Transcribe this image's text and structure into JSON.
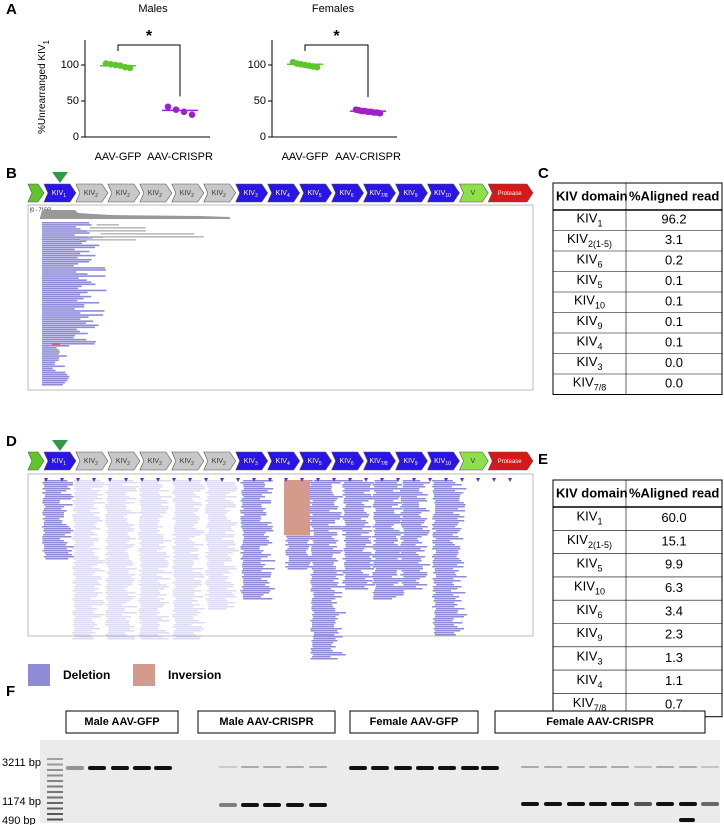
{
  "panel_labels": [
    "A",
    "B",
    "C",
    "D",
    "E",
    "F"
  ],
  "chart_data": [
    {
      "type": "dot",
      "title": "Males",
      "y_label": "%Unrearranged KIV",
      "y_label_sub": "1",
      "categories": [
        "AAV-GFP",
        "AAV-CRISPR"
      ],
      "colors": [
        "#5ec62b",
        "#a020c8"
      ],
      "values": [
        [
          102,
          101,
          100,
          99,
          97,
          96
        ],
        [
          42,
          38,
          35,
          31
        ]
      ],
      "means": [
        99,
        37
      ],
      "ylim": [
        0,
        125
      ],
      "yticks": [
        0,
        50,
        100
      ],
      "significance": "*"
    },
    {
      "type": "dot",
      "title": "Females",
      "categories": [
        "AAV-GFP",
        "AAV-CRISPR"
      ],
      "colors": [
        "#5ec62b",
        "#a020c8"
      ],
      "values": [
        [
          104,
          102,
          101,
          100,
          99,
          98,
          97
        ],
        [
          38,
          37,
          36,
          36,
          35,
          35,
          34,
          34,
          33
        ]
      ],
      "means": [
        101,
        36
      ],
      "ylim": [
        0,
        125
      ],
      "yticks": [
        0,
        50,
        100
      ],
      "significance": "*"
    }
  ],
  "gene_map": [
    {
      "label": null,
      "sub": null,
      "color": "#5ec62b"
    },
    {
      "label": "KIV",
      "sub": "1",
      "color": "#2a14e8"
    },
    {
      "label": "KIV",
      "sub": "2",
      "color": "#c8c8c8"
    },
    {
      "label": "KIV",
      "sub": "2",
      "color": "#c8c8c8"
    },
    {
      "label": "KIV",
      "sub": "2",
      "color": "#c8c8c8"
    },
    {
      "label": "KIV",
      "sub": "2",
      "color": "#c8c8c8"
    },
    {
      "label": "KIV",
      "sub": "2",
      "color": "#c8c8c8"
    },
    {
      "label": "KIV",
      "sub": "3",
      "color": "#2a14e8"
    },
    {
      "label": "KIV",
      "sub": "4",
      "color": "#2a14e8"
    },
    {
      "label": "KIV",
      "sub": "5",
      "color": "#2a14e8"
    },
    {
      "label": "KIV",
      "sub": "6",
      "color": "#2a14e8"
    },
    {
      "label": "KIV",
      "sub": "7/8",
      "color": "#2a14e8"
    },
    {
      "label": "KIV",
      "sub": "9",
      "color": "#2a14e8"
    },
    {
      "label": "KIV",
      "sub": "10",
      "color": "#2a14e8"
    },
    {
      "label": "V",
      "sub": null,
      "color": "#8ee04a"
    },
    {
      "label": "Protease",
      "sub": null,
      "color": "#d61818"
    }
  ],
  "track_scale": "[0 - 7156]",
  "legend": [
    {
      "name": "Deletion",
      "color": "#8e8ad8"
    },
    {
      "name": "Inversion",
      "color": "#d49a8c"
    }
  ],
  "table_c": {
    "header": [
      "KIV domain",
      "%Aligned read"
    ],
    "rows": [
      [
        "KIV",
        "1",
        "96.2"
      ],
      [
        "KIV",
        "2(1-5)",
        "3.1"
      ],
      [
        "KIV",
        "6",
        "0.2"
      ],
      [
        "KIV",
        "5",
        "0.1"
      ],
      [
        "KIV",
        "10",
        "0.1"
      ],
      [
        "KIV",
        "9",
        "0.1"
      ],
      [
        "KIV",
        "4",
        "0.1"
      ],
      [
        "KIV",
        "3",
        "0.0"
      ],
      [
        "KIV",
        "7/8",
        "0.0"
      ]
    ]
  },
  "table_e": {
    "header": [
      "KIV domain",
      "%Aligned read"
    ],
    "rows": [
      [
        "KIV",
        "1",
        "60.0"
      ],
      [
        "KIV",
        "2(1-5)",
        "15.1"
      ],
      [
        "KIV",
        "5",
        "9.9"
      ],
      [
        "KIV",
        "10",
        "6.3"
      ],
      [
        "KIV",
        "6",
        "3.4"
      ],
      [
        "KIV",
        "9",
        "2.3"
      ],
      [
        "KIV",
        "3",
        "1.3"
      ],
      [
        "KIV",
        "4",
        "1.1"
      ],
      [
        "KIV",
        "7/8",
        "0.7"
      ]
    ]
  },
  "gel": {
    "groups": [
      "Male AAV-GFP",
      "Male AAV-CRISPR",
      "Female AAV-GFP",
      "Female AAV-CRISPR"
    ],
    "markers": [
      "3211 bp",
      "1174 bp",
      "490 bp"
    ]
  }
}
